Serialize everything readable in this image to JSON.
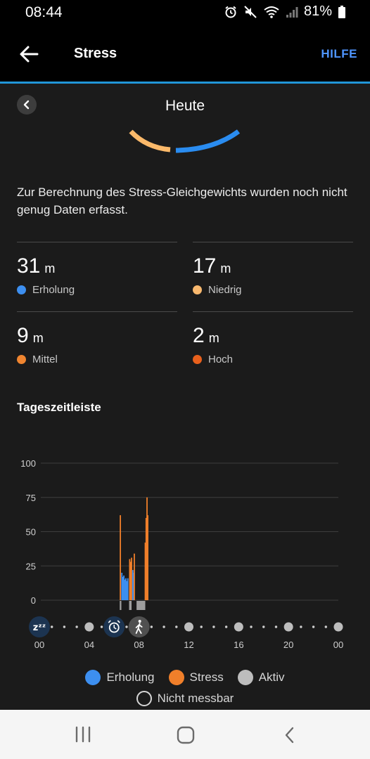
{
  "status_bar": {
    "time": "08:44",
    "battery": "81%",
    "icons": [
      "alarm-icon",
      "mute-icon",
      "wifi-icon",
      "signal-icon",
      "battery-icon"
    ]
  },
  "app_bar": {
    "title": "Stress",
    "help_label": "HILFE",
    "accent_color": "#2196d8"
  },
  "date_nav": {
    "label": "Heute"
  },
  "gauge": {
    "segments": [
      {
        "name": "Niedrig",
        "color": "#fbb96a"
      },
      {
        "name": "Erholung",
        "color": "#2a8cf0"
      }
    ]
  },
  "info_text": "Zur Berechnung des Stress-Gleichgewichts wurden noch nicht genug Daten erfasst.",
  "stats": [
    {
      "value": "31",
      "unit": "m",
      "label": "Erholung",
      "color": "#3d8ff0"
    },
    {
      "value": "17",
      "unit": "m",
      "label": "Niedrig",
      "color": "#f8b86e"
    },
    {
      "value": "9",
      "unit": "m",
      "label": "Mittel",
      "color": "#f08530"
    },
    {
      "value": "2",
      "unit": "m",
      "label": "Hoch",
      "color": "#e8601c"
    }
  ],
  "timeline": {
    "title": "Tageszeitleiste",
    "chart_data": {
      "type": "bar",
      "y_ticks": [
        "100",
        "75",
        "50",
        "25",
        "0"
      ],
      "ylim": [
        0,
        100
      ],
      "x_ticks": [
        "00",
        "04",
        "08",
        "12",
        "16",
        "20",
        "00"
      ],
      "xlim_hours": [
        0,
        24
      ],
      "series": [
        {
          "name": "Erholung",
          "color": "#3d8ff0"
        },
        {
          "name": "Stress",
          "color": "#f07f2a"
        },
        {
          "name": "Aktiv",
          "color": "#bdbdbd"
        }
      ],
      "bars": [
        {
          "hour": 6.5,
          "value": 62,
          "series": "Stress"
        },
        {
          "hour": 6.62,
          "value": 20,
          "series": "Erholung"
        },
        {
          "hour": 6.7,
          "value": 17,
          "series": "Erholung"
        },
        {
          "hour": 6.78,
          "value": 18,
          "series": "Erholung"
        },
        {
          "hour": 6.86,
          "value": 15,
          "series": "Erholung"
        },
        {
          "hour": 6.94,
          "value": 16,
          "series": "Erholung"
        },
        {
          "hour": 7.02,
          "value": 14,
          "series": "Erholung"
        },
        {
          "hour": 7.1,
          "value": 16,
          "series": "Erholung"
        },
        {
          "hour": 7.25,
          "value": 30,
          "series": "Stress"
        },
        {
          "hour": 7.32,
          "value": 28,
          "series": "Stress"
        },
        {
          "hour": 7.4,
          "value": 31,
          "series": "Stress"
        },
        {
          "hour": 7.5,
          "value": 22,
          "series": "Erholung"
        },
        {
          "hour": 7.56,
          "value": 20,
          "series": "Erholung"
        },
        {
          "hour": 7.62,
          "value": 34,
          "series": "Stress"
        },
        {
          "hour": 8.5,
          "value": 42,
          "series": "Stress"
        },
        {
          "hour": 8.57,
          "value": 60,
          "series": "Stress"
        },
        {
          "hour": 8.64,
          "value": 75,
          "series": "Stress"
        },
        {
          "hour": 8.7,
          "value": 62,
          "series": "Stress"
        }
      ],
      "below_zero_segments": [
        {
          "start": 6.45,
          "end": 6.58,
          "series": "Aktiv"
        },
        {
          "start": 7.2,
          "end": 7.4,
          "series": "Aktiv"
        },
        {
          "start": 7.8,
          "end": 8.5,
          "series": "Aktiv"
        }
      ]
    },
    "markers": [
      {
        "hour": 0,
        "icon": "sleep-icon",
        "label": "zᶻᶻ"
      },
      {
        "hour": 6,
        "icon": "alarm-clock-icon"
      },
      {
        "hour": 8,
        "icon": "walking-icon"
      }
    ]
  },
  "legend": {
    "items": [
      {
        "label": "Erholung",
        "color": "#3d8ff0"
      },
      {
        "label": "Stress",
        "color": "#f07f2a"
      },
      {
        "label": "Aktiv",
        "color": "#bdbdbd"
      }
    ],
    "unmeasurable_label": "Nicht messbar"
  }
}
